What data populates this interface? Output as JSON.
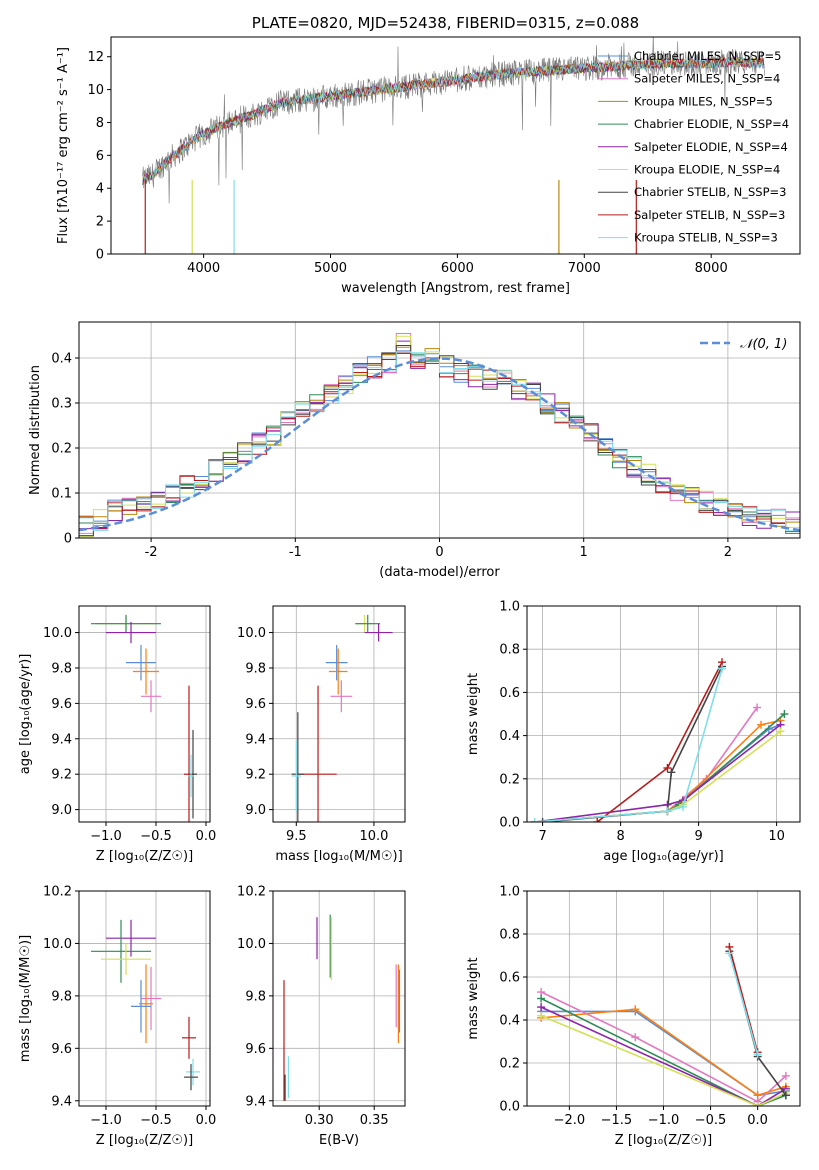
{
  "chart_data": [
    {
      "id": "spectrum",
      "type": "line",
      "title": "PLATE=0820, MJD=52438, FIBERID=0315, z=0.088",
      "xlabel": "wavelength [Angstrom, rest frame]",
      "ylabel": "Flux [fλ10⁻¹⁷ erg cm⁻² s⁻¹ A⁻¹]",
      "xlim": [
        3270,
        8700
      ],
      "ylim": [
        0,
        13.2
      ],
      "xticks": [
        4000,
        5000,
        6000,
        7000,
        8000
      ],
      "yticks": [
        0,
        2,
        4,
        6,
        8,
        10,
        12
      ],
      "grid": false,
      "legend_position": "top-right",
      "observed_anchors": {
        "x": [
          3520,
          3600,
          3700,
          3800,
          3900,
          4000,
          4200,
          4400,
          4600,
          4800,
          5000,
          5200,
          5400,
          5600,
          5800,
          6000,
          6200,
          6400,
          6600,
          6800,
          7000,
          7200,
          7400,
          7600,
          7800,
          8000,
          8200,
          8400
        ],
        "y": [
          4.5,
          4.8,
          5.6,
          6.2,
          6.8,
          7.3,
          8.0,
          8.5,
          9.2,
          9.4,
          9.6,
          9.8,
          10.0,
          10.2,
          10.4,
          10.6,
          10.8,
          11.0,
          11.1,
          11.2,
          11.3,
          11.4,
          11.5,
          11.6,
          11.6,
          11.6,
          11.7,
          11.6
        ]
      },
      "series": [
        {
          "name": "Chabrier MILES, N_SSP=5",
          "color": "#5b8dd9"
        },
        {
          "name": "Salpeter MILES, N_SSP=4",
          "color": "#e377c2"
        },
        {
          "name": "Kroupa MILES, N_SSP=5",
          "color": "#b8860b"
        },
        {
          "name": "Chabrier ELODIE, N_SSP=4",
          "color": "#2e8b57"
        },
        {
          "name": "Salpeter ELODIE, N_SSP=4",
          "color": "#8e24aa"
        },
        {
          "name": "Kroupa ELODIE, N_SSP=4",
          "color": "#d4e157"
        },
        {
          "name": "Chabrier STELIB, N_SSP=3",
          "color": "#444444"
        },
        {
          "name": "Salpeter STELIB, N_SSP=3",
          "color": "#b71c1c"
        },
        {
          "name": "Kroupa STELIB, N_SSP=3",
          "color": "#80deea"
        }
      ]
    },
    {
      "id": "residuals",
      "type": "line",
      "xlabel": "(data-model)/error",
      "ylabel": "Normed distribution",
      "xlim": [
        -2.5,
        2.5
      ],
      "ylim": [
        0,
        0.48
      ],
      "xticks": [
        -2,
        -1,
        0,
        1,
        2
      ],
      "yticks": [
        0.0,
        0.1,
        0.2,
        0.3,
        0.4
      ],
      "grid": true,
      "legend_position": "top-right",
      "legend_label": "𝒩(0, 1)",
      "gauss_color": "#5b8dd9",
      "hist_bin_centers": [
        -2.45,
        -2.35,
        -2.25,
        -2.15,
        -2.05,
        -1.95,
        -1.85,
        -1.75,
        -1.65,
        -1.55,
        -1.45,
        -1.35,
        -1.25,
        -1.15,
        -1.05,
        -0.95,
        -0.85,
        -0.75,
        -0.65,
        -0.55,
        -0.45,
        -0.35,
        -0.25,
        -0.15,
        -0.05,
        0.05,
        0.15,
        0.25,
        0.35,
        0.45,
        0.55,
        0.65,
        0.75,
        0.85,
        0.95,
        1.05,
        1.15,
        1.25,
        1.35,
        1.45,
        1.55,
        1.65,
        1.75,
        1.85,
        1.95,
        2.05,
        2.15,
        2.25,
        2.35,
        2.45
      ],
      "hist_values": [
        0.028,
        0.04,
        0.06,
        0.07,
        0.075,
        0.085,
        0.1,
        0.115,
        0.13,
        0.15,
        0.17,
        0.19,
        0.21,
        0.23,
        0.26,
        0.28,
        0.3,
        0.32,
        0.34,
        0.37,
        0.38,
        0.39,
        0.43,
        0.39,
        0.4,
        0.38,
        0.37,
        0.36,
        0.35,
        0.36,
        0.33,
        0.32,
        0.3,
        0.28,
        0.25,
        0.23,
        0.2,
        0.18,
        0.16,
        0.14,
        0.12,
        0.1,
        0.09,
        0.08,
        0.07,
        0.055,
        0.05,
        0.045,
        0.04,
        0.035
      ]
    },
    {
      "id": "age_vs_Z",
      "type": "scatter",
      "xlabel": "Z [log₁₀(Z/Z☉)]",
      "ylabel": "age  [log₁₀(age/yr)]",
      "xlim": [
        -1.27,
        0.04
      ],
      "ylim": [
        8.93,
        10.15
      ],
      "xticks": [
        -1.0,
        -0.5,
        0.0
      ],
      "xticklabels": [
        "−1.0",
        "−0.5",
        "0.0"
      ],
      "yticks": [
        9.0,
        9.2,
        9.4,
        9.6,
        9.8,
        10.0
      ],
      "yticklabels": [
        "9.0",
        "9.2",
        "9.4",
        "9.6",
        "9.8",
        "10.0"
      ],
      "grid": true,
      "points": [
        {
          "x": -0.8,
          "y": 10.05,
          "xerr": 0.3,
          "yerr": 0.05,
          "color": "#d4e157"
        },
        {
          "x": -0.8,
          "y": 10.05,
          "xerr": 0.35,
          "yerr": 0.05,
          "color": "#2e8b57"
        },
        {
          "x": -0.75,
          "y": 10.0,
          "xerr": 0.25,
          "yerr": 0.06,
          "color": "#8e24aa"
        },
        {
          "x": -0.65,
          "y": 9.83,
          "xerr": 0.15,
          "yerr": 0.1,
          "color": "#5b8dd9"
        },
        {
          "x": -0.6,
          "y": 9.78,
          "xerr": 0.13,
          "yerr": 0.13,
          "color": "#ff7f0e"
        },
        {
          "x": -0.55,
          "y": 9.64,
          "xerr": 0.1,
          "yerr": 0.09,
          "color": "#e377c2"
        },
        {
          "x": -0.17,
          "y": 9.2,
          "xerr": 0.05,
          "yerr": 0.5,
          "color": "#b71c1c"
        },
        {
          "x": -0.13,
          "y": 9.2,
          "xerr": 0.04,
          "yerr": 0.25,
          "color": "#444444"
        },
        {
          "x": -0.15,
          "y": 9.19,
          "xerr": 0.03,
          "yerr": 0.12,
          "color": "#80deea"
        }
      ]
    },
    {
      "id": "age_vs_mass",
      "type": "scatter",
      "xlabel": "mass [log₁₀(M/M☉)]",
      "xlim": [
        9.35,
        10.2
      ],
      "ylim": [
        8.93,
        10.15
      ],
      "xticks": [
        9.5,
        10.0
      ],
      "xticklabels": [
        "9.5",
        "10.0"
      ],
      "yticks": [
        9.0,
        9.2,
        9.4,
        9.6,
        9.8,
        10.0
      ],
      "yticklabels": [
        "9.0",
        "9.2",
        "9.4",
        "9.6",
        "9.8",
        "10.0"
      ],
      "grid": true,
      "points": [
        {
          "x": 9.94,
          "y": 10.05,
          "xerr": 0.06,
          "yerr": 0.05,
          "color": "#d4e157"
        },
        {
          "x": 9.96,
          "y": 10.05,
          "xerr": 0.08,
          "yerr": 0.05,
          "color": "#2e8b57"
        },
        {
          "x": 10.03,
          "y": 10.0,
          "xerr": 0.09,
          "yerr": 0.05,
          "color": "#8e24aa"
        },
        {
          "x": 9.76,
          "y": 9.83,
          "xerr": 0.07,
          "yerr": 0.1,
          "color": "#5b8dd9"
        },
        {
          "x": 9.77,
          "y": 9.78,
          "xerr": 0.06,
          "yerr": 0.13,
          "color": "#ff7f0e"
        },
        {
          "x": 9.79,
          "y": 9.64,
          "xerr": 0.07,
          "yerr": 0.09,
          "color": "#e377c2"
        },
        {
          "x": 9.64,
          "y": 9.2,
          "xerr": 0.12,
          "yerr": 0.5,
          "color": "#b71c1c"
        },
        {
          "x": 9.51,
          "y": 9.2,
          "xerr": 0.04,
          "yerr": 0.35,
          "color": "#444444"
        },
        {
          "x": 9.5,
          "y": 9.19,
          "xerr": 0.03,
          "yerr": 0.2,
          "color": "#80deea"
        }
      ]
    },
    {
      "id": "weight_vs_age",
      "type": "line",
      "xlabel": "age  [log₁₀(age/yr)]",
      "ylabel": "mass weight",
      "xlim": [
        6.8,
        10.3
      ],
      "ylim": [
        0,
        1.0
      ],
      "xticks": [
        7,
        8,
        9,
        10
      ],
      "xticklabels": [
        "7",
        "8",
        "9",
        "10"
      ],
      "yticks": [
        0.0,
        0.2,
        0.4,
        0.6,
        0.8,
        1.0
      ],
      "yticklabels": [
        "0.0",
        "0.2",
        "0.4",
        "0.6",
        "0.8",
        "1.0"
      ],
      "grid": true,
      "series": [
        {
          "color": "#5b8dd9",
          "x": [
            6.9,
            8.6,
            8.8,
            9.9,
            10.05
          ],
          "y": [
            0.0,
            0.05,
            0.1,
            0.43,
            0.45
          ]
        },
        {
          "color": "#e377c2",
          "x": [
            6.9,
            8.6,
            9.1,
            9.75
          ],
          "y": [
            0.0,
            0.05,
            0.2,
            0.53
          ]
        },
        {
          "color": "#ff7f0e",
          "x": [
            6.9,
            8.6,
            8.8,
            9.8,
            10.05
          ],
          "y": [
            0.0,
            0.05,
            0.1,
            0.45,
            0.47
          ]
        },
        {
          "color": "#2e8b57",
          "x": [
            6.9,
            8.6,
            8.75,
            10.1
          ],
          "y": [
            0.0,
            0.05,
            0.08,
            0.5
          ]
        },
        {
          "color": "#8e24aa",
          "x": [
            6.9,
            8.6,
            8.8,
            10.05
          ],
          "y": [
            0.0,
            0.08,
            0.1,
            0.45
          ]
        },
        {
          "color": "#d4e157",
          "x": [
            6.9,
            8.6,
            8.8,
            10.05
          ],
          "y": [
            0.0,
            0.05,
            0.08,
            0.42
          ]
        },
        {
          "color": "#444444",
          "x": [
            7.0,
            8.6,
            8.65,
            9.3
          ],
          "y": [
            0.0,
            0.05,
            0.23,
            0.72
          ]
        },
        {
          "color": "#b71c1c",
          "x": [
            7.7,
            8.6,
            9.3
          ],
          "y": [
            0.0,
            0.25,
            0.74
          ]
        },
        {
          "color": "#80deea",
          "x": [
            6.9,
            8.6,
            8.8,
            9.3
          ],
          "y": [
            0.0,
            0.05,
            0.07,
            0.71
          ]
        }
      ]
    },
    {
      "id": "mass_vs_Z",
      "type": "scatter",
      "xlabel": "Z [log₁₀(Z/Z☉)]",
      "ylabel": "mass [log₁₀(M/M☉)]",
      "xlim": [
        -1.27,
        0.04
      ],
      "ylim": [
        9.38,
        10.2
      ],
      "xticks": [
        -1.0,
        -0.5,
        0.0
      ],
      "xticklabels": [
        "−1.0",
        "−0.5",
        "0.0"
      ],
      "yticks": [
        9.4,
        9.6,
        9.8,
        10.0,
        10.2
      ],
      "yticklabels": [
        "9.4",
        "9.6",
        "9.8",
        "10.0",
        "10.2"
      ],
      "grid": true,
      "points": [
        {
          "x": -0.75,
          "y": 10.02,
          "xerr": 0.25,
          "yerr": 0.07,
          "color": "#8e24aa"
        },
        {
          "x": -0.85,
          "y": 9.97,
          "xerr": 0.3,
          "yerr": 0.12,
          "color": "#2e8b57"
        },
        {
          "x": -0.8,
          "y": 9.94,
          "xerr": 0.25,
          "yerr": 0.06,
          "color": "#d4e157"
        },
        {
          "x": -0.55,
          "y": 9.79,
          "xerr": 0.1,
          "yerr": 0.12,
          "color": "#e377c2"
        },
        {
          "x": -0.6,
          "y": 9.77,
          "xerr": 0.07,
          "yerr": 0.15,
          "color": "#ff7f0e"
        },
        {
          "x": -0.65,
          "y": 9.76,
          "xerr": 0.1,
          "yerr": 0.1,
          "color": "#5b8dd9"
        },
        {
          "x": -0.17,
          "y": 9.64,
          "xerr": 0.07,
          "yerr": 0.08,
          "color": "#b71c1c"
        },
        {
          "x": -0.13,
          "y": 9.51,
          "xerr": 0.07,
          "yerr": 0.05,
          "color": "#80deea"
        },
        {
          "x": -0.15,
          "y": 9.49,
          "xerr": 0.07,
          "yerr": 0.05,
          "color": "#444444"
        }
      ]
    },
    {
      "id": "mass_vs_ebv",
      "type": "scatter",
      "xlabel": "E(B-V)",
      "xlim": [
        0.258,
        0.378
      ],
      "ylim": [
        9.38,
        10.2
      ],
      "xticks": [
        0.3,
        0.35
      ],
      "xticklabels": [
        "0.30",
        "0.35"
      ],
      "yticks": [
        9.4,
        9.6,
        9.8,
        10.0,
        10.2
      ],
      "yticklabels": [
        "9.4",
        "9.6",
        "9.8",
        "10.0",
        "10.2"
      ],
      "grid": true,
      "points": [
        {
          "x": 0.298,
          "y": 10.02,
          "xerr": 0,
          "yerr": 0.08,
          "color": "#8e24aa"
        },
        {
          "x": 0.31,
          "y": 9.99,
          "xerr": 0,
          "yerr": 0.12,
          "color": "#2e8b57"
        },
        {
          "x": 0.311,
          "y": 9.98,
          "xerr": 0,
          "yerr": 0.12,
          "color": "#d4e157"
        },
        {
          "x": 0.37,
          "y": 9.8,
          "xerr": 0,
          "yerr": 0.12,
          "color": "#e377c2"
        },
        {
          "x": 0.372,
          "y": 9.77,
          "xerr": 0,
          "yerr": 0.15,
          "color": "#ff7f0e"
        },
        {
          "x": 0.373,
          "y": 9.78,
          "xerr": 0,
          "yerr": 0.12,
          "color": "#5b8dd9"
        },
        {
          "x": 0.268,
          "y": 9.63,
          "xerr": 0,
          "yerr": 0.23,
          "color": "#b71c1c"
        },
        {
          "x": 0.272,
          "y": 9.49,
          "xerr": 0,
          "yerr": 0.08,
          "color": "#80deea"
        },
        {
          "x": 0.269,
          "y": 9.45,
          "xerr": 0,
          "yerr": 0.05,
          "color": "#444444"
        }
      ]
    },
    {
      "id": "weight_vs_Z",
      "type": "line",
      "xlabel": "Z [log₁₀(Z/Z☉)]",
      "ylabel": "mass weight",
      "xlim": [
        -2.45,
        0.45
      ],
      "ylim": [
        0,
        1.0
      ],
      "xticks": [
        -2.0,
        -1.5,
        -1.0,
        -0.5,
        0.0
      ],
      "xticklabels": [
        "−2.0",
        "−1.5",
        "−1.0",
        "−0.5",
        "0.0"
      ],
      "yticks": [
        0.0,
        0.2,
        0.4,
        0.6,
        0.8,
        1.0
      ],
      "yticklabels": [
        "0.0",
        "0.2",
        "0.4",
        "0.6",
        "0.8",
        "1.0"
      ],
      "grid": true,
      "series": [
        {
          "color": "#5b8dd9",
          "x": [
            -2.3,
            -1.3,
            0.0,
            0.3
          ],
          "y": [
            0.44,
            0.44,
            0.05,
            0.07
          ]
        },
        {
          "color": "#e377c2",
          "x": [
            -2.3,
            -1.3,
            0.0,
            0.3
          ],
          "y": [
            0.53,
            0.32,
            0.02,
            0.14
          ]
        },
        {
          "color": "#ff7f0e",
          "x": [
            -2.3,
            -1.3,
            0.0,
            0.3
          ],
          "y": [
            0.41,
            0.45,
            0.05,
            0.09
          ]
        },
        {
          "color": "#2e8b57",
          "x": [
            -2.3,
            0.0,
            0.3
          ],
          "y": [
            0.5,
            0.0,
            0.05
          ]
        },
        {
          "color": "#8e24aa",
          "x": [
            -2.3,
            0.0,
            0.3
          ],
          "y": [
            0.46,
            0.0,
            0.08
          ]
        },
        {
          "color": "#d4e157",
          "x": [
            -2.3,
            0.0,
            0.3
          ],
          "y": [
            0.42,
            0.0,
            0.06
          ]
        },
        {
          "color": "#444444",
          "x": [
            -0.3,
            0.0,
            0.3
          ],
          "y": [
            0.72,
            0.23,
            0.05
          ]
        },
        {
          "color": "#b71c1c",
          "x": [
            -0.3,
            0.0
          ],
          "y": [
            0.74,
            0.25
          ]
        },
        {
          "color": "#80deea",
          "x": [
            -0.3,
            0.0
          ],
          "y": [
            0.71,
            0.24
          ]
        }
      ]
    }
  ]
}
